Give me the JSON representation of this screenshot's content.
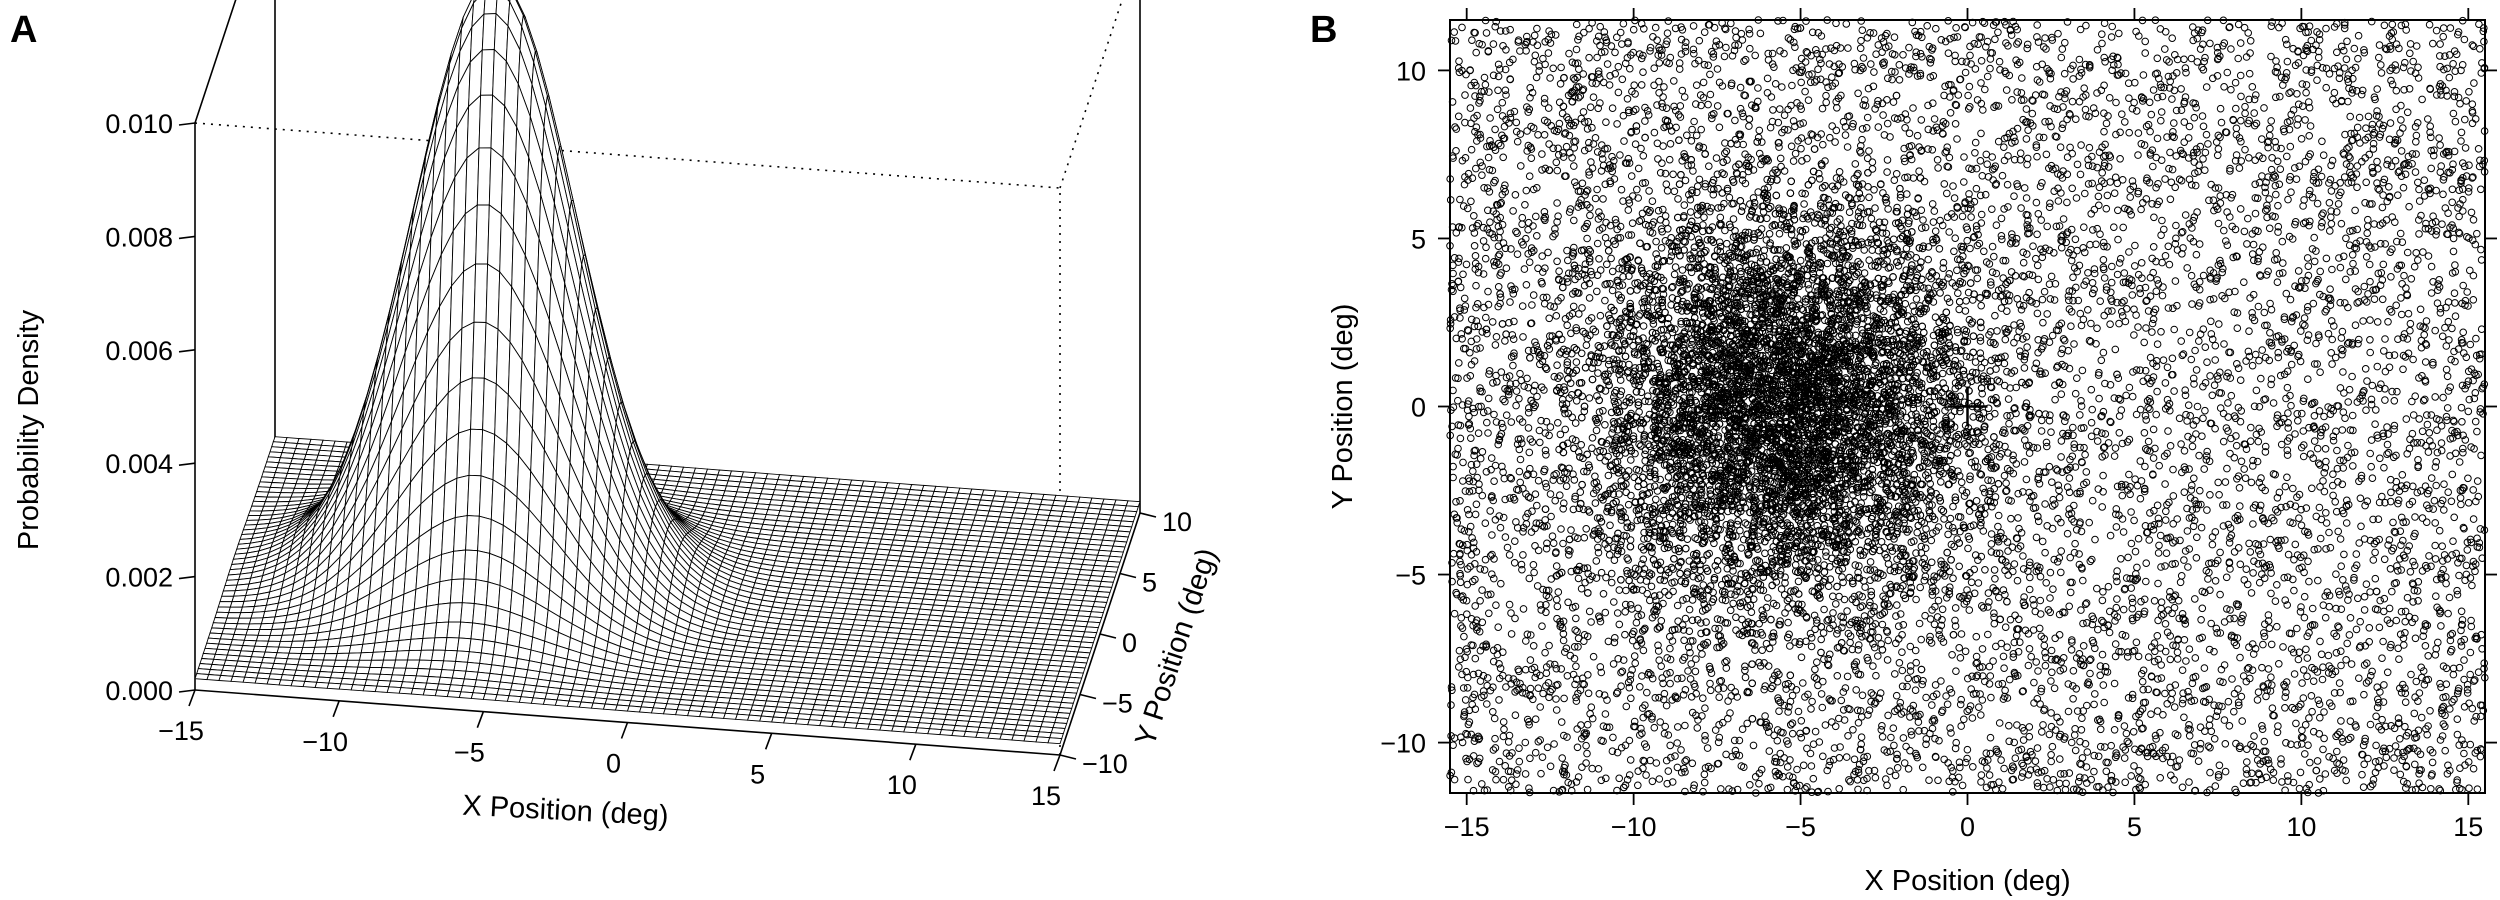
{
  "panels": {
    "a_label": "A",
    "b_label": "B"
  },
  "chart_data": [
    {
      "type": "surface",
      "panel": "A",
      "xlabel": "X Position (deg)",
      "ylabel": "Y Position (deg)",
      "zlabel": "Probability Density",
      "xlim": [
        -15,
        15
      ],
      "ylim": [
        -10,
        10
      ],
      "zlim": [
        0,
        0.01
      ],
      "x_ticks": [
        -15,
        -10,
        -5,
        0,
        5,
        10,
        15
      ],
      "x_tick_labels": [
        "−15",
        "−10",
        "−5",
        "0",
        "5",
        "10",
        "15"
      ],
      "y_ticks": [
        -10,
        -5,
        0,
        5,
        10
      ],
      "y_tick_labels": [
        "−10",
        "−5",
        "0",
        "5",
        "10"
      ],
      "z_ticks": [
        0,
        0.002,
        0.004,
        0.006,
        0.008,
        0.01
      ],
      "z_tick_labels": [
        "0.000",
        "0.002",
        "0.004",
        "0.006",
        "0.008",
        "0.010"
      ],
      "peak": {
        "x": -6,
        "y": 0,
        "density": 0.0108
      },
      "baseline_density": 0.0002,
      "grid": true
    },
    {
      "type": "scatter",
      "panel": "B",
      "xlabel": "X Position (deg)",
      "ylabel": "Y Position (deg)",
      "xlim": [
        -15.5,
        15.5
      ],
      "ylim": [
        -11.5,
        11.5
      ],
      "x_ticks": [
        -15,
        -10,
        -5,
        0,
        5,
        10,
        15
      ],
      "x_tick_labels": [
        "−15",
        "−10",
        "−5",
        "0",
        "5",
        "10",
        "15"
      ],
      "y_ticks": [
        -10,
        -5,
        0,
        5,
        10
      ],
      "y_tick_labels": [
        "−10",
        "−5",
        "0",
        "5",
        "10"
      ],
      "cluster_center": {
        "x": -5.5,
        "y": 0
      },
      "cluster_sd": 2.8,
      "n_uniform_points": 8000,
      "n_cluster_points": 7000,
      "fixation_marker": {
        "x": 0,
        "y": 0,
        "symbol": "+"
      },
      "marker": "open-circle",
      "grid": false
    }
  ]
}
